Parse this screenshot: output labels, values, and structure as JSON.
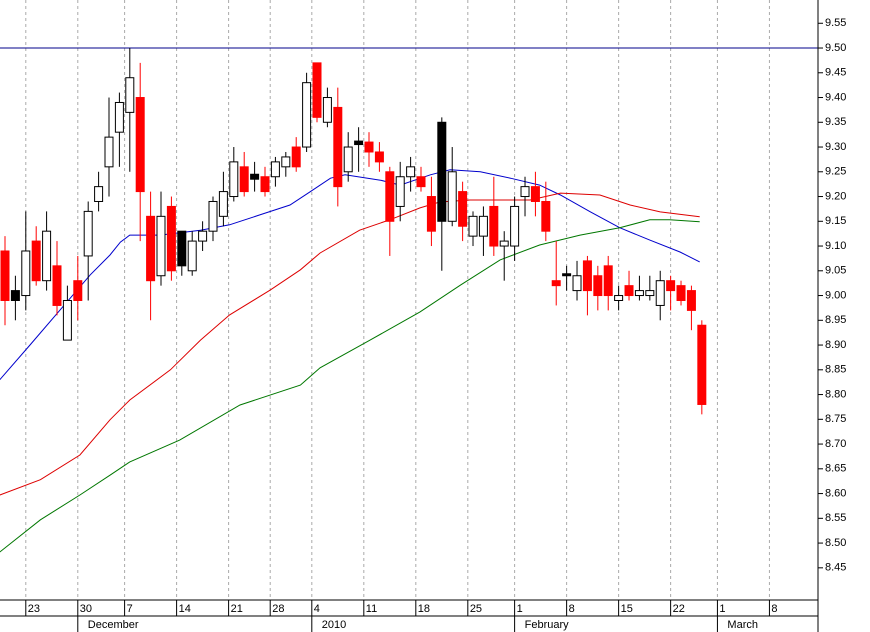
{
  "chart_data": {
    "type": "candlestick",
    "ylim": [
      8.385,
      9.597
    ],
    "yticks": [
      8.45,
      {
        "value": 8.5,
        "label": "8.50"
      },
      8.55,
      {
        "value": 8.6,
        "label": "8.60"
      },
      8.65,
      {
        "value": 8.7,
        "label": "8.70"
      },
      8.75,
      {
        "value": 8.8,
        "label": "8.80"
      },
      8.85,
      {
        "value": 8.9,
        "label": "8.90"
      },
      8.95,
      {
        "value": 9.0,
        "label": "9.00"
      },
      9.05,
      {
        "value": 9.1,
        "label": "9.10"
      },
      9.15,
      {
        "value": 9.2,
        "label": "9.20"
      },
      9.25,
      {
        "value": 9.3,
        "label": "9.30"
      },
      9.35,
      {
        "value": 9.4,
        "label": "9.40"
      },
      9.45,
      {
        "value": 9.5,
        "label": "9.50"
      },
      9.55
    ],
    "xlim": [
      -0.48,
      78.17
    ],
    "xticks": [
      {
        "value": 2,
        "label": "23"
      },
      {
        "value": 7,
        "label": "30"
      },
      {
        "value": 11.5,
        "label": "7"
      },
      {
        "value": 16.5,
        "label": "14"
      },
      {
        "value": 21.5,
        "label": "21"
      },
      {
        "value": 25.5,
        "label": "28"
      },
      {
        "value": 29.5,
        "label": "4"
      },
      {
        "value": 34.5,
        "label": "11"
      },
      {
        "value": 39.5,
        "label": "18"
      },
      {
        "value": 44.5,
        "label": "25"
      },
      {
        "value": 49,
        "label": "1"
      },
      {
        "value": 54,
        "label": "8"
      },
      {
        "value": 59,
        "label": "15"
      },
      {
        "value": 64,
        "label": "22"
      },
      {
        "value": 68.5,
        "label": "1"
      },
      {
        "value": 73.5,
        "label": "8"
      }
    ],
    "month_ticks": [
      {
        "value": 7,
        "label": "December"
      },
      {
        "value": 29.5,
        "label": "2010"
      },
      {
        "value": 49,
        "label": "February"
      },
      {
        "value": 68.5,
        "label": "March"
      }
    ],
    "grid": true,
    "reference_line": {
      "value": 9.5,
      "color": "#00008b"
    },
    "candles": {
      "x": [
        0,
        1,
        2,
        3,
        4,
        5,
        6,
        7,
        8,
        9,
        10,
        11,
        12,
        13,
        14,
        15,
        16,
        17,
        18,
        19,
        20,
        21,
        22,
        23,
        24,
        25,
        26,
        27,
        28,
        29,
        30,
        31,
        32,
        33,
        34,
        35,
        36,
        37,
        38,
        39,
        40,
        41,
        42,
        43,
        44,
        45,
        46,
        47,
        48,
        49,
        50,
        51,
        52,
        53,
        54,
        55,
        56,
        57,
        58,
        59,
        60,
        61,
        62,
        63,
        64,
        65,
        66,
        67
      ],
      "open": [
        9.09,
        9.01,
        9.0,
        9.11,
        9.03,
        9.06,
        8.91,
        9.03,
        9.08,
        9.19,
        9.26,
        9.33,
        9.37,
        9.4,
        9.16,
        9.04,
        9.18,
        9.13,
        9.05,
        9.11,
        9.13,
        9.16,
        9.2,
        9.26,
        9.245,
        9.24,
        9.24,
        9.26,
        9.3,
        9.3,
        9.47,
        9.35,
        9.38,
        9.25,
        9.312,
        9.31,
        9.29,
        9.25,
        9.18,
        9.24,
        9.24,
        9.2,
        9.35,
        9.15,
        9.21,
        9.12,
        9.12,
        9.18,
        9.1,
        9.1,
        9.2,
        9.22,
        9.19,
        9.03,
        9.044,
        9.01,
        9.07,
        9.04,
        9.06,
        8.99,
        9.02,
        9.0,
        9.0,
        8.98,
        9.03,
        9.02,
        9.01,
        8.94
      ],
      "high": [
        9.12,
        9.04,
        9.17,
        9.14,
        9.17,
        9.11,
        9.02,
        9.08,
        9.19,
        9.25,
        9.4,
        9.41,
        9.5,
        9.47,
        9.21,
        9.21,
        9.2,
        9.13,
        9.13,
        9.15,
        9.2,
        9.25,
        9.3,
        9.29,
        9.27,
        9.26,
        9.28,
        9.29,
        9.32,
        9.45,
        9.47,
        9.42,
        9.42,
        9.33,
        9.34,
        9.33,
        9.31,
        9.26,
        9.27,
        9.28,
        9.26,
        9.24,
        9.36,
        9.3,
        9.23,
        9.17,
        9.18,
        9.24,
        9.13,
        9.2,
        9.24,
        9.25,
        9.23,
        9.11,
        9.06,
        9.07,
        9.08,
        9.06,
        9.08,
        9.02,
        9.05,
        9.04,
        9.04,
        9.05,
        9.04,
        9.03,
        9.02,
        8.95
      ],
      "low": [
        8.94,
        8.95,
        8.97,
        9.02,
        9.01,
        8.96,
        8.91,
        8.95,
        8.99,
        9.17,
        9.2,
        9.26,
        9.25,
        9.11,
        8.95,
        9.02,
        9.03,
        9.04,
        9.04,
        9.09,
        9.11,
        9.14,
        9.19,
        9.2,
        9.21,
        9.2,
        9.22,
        9.24,
        9.25,
        9.29,
        9.35,
        9.34,
        9.18,
        9.23,
        9.25,
        9.26,
        9.25,
        9.08,
        9.15,
        9.21,
        9.21,
        9.1,
        9.05,
        9.14,
        9.11,
        9.1,
        9.08,
        9.08,
        9.03,
        9.07,
        9.16,
        9.16,
        9.11,
        8.98,
        9.01,
        8.99,
        8.96,
        8.97,
        8.97,
        8.97,
        8.99,
        8.99,
        8.99,
        8.95,
        8.97,
        8.98,
        8.93,
        8.76
      ],
      "close": [
        8.99,
        8.99,
        9.09,
        9.03,
        9.13,
        8.98,
        8.99,
        8.99,
        9.17,
        9.22,
        9.32,
        9.39,
        9.44,
        9.21,
        9.03,
        9.16,
        9.05,
        9.06,
        9.11,
        9.13,
        9.19,
        9.21,
        9.27,
        9.21,
        9.235,
        9.21,
        9.27,
        9.28,
        9.26,
        9.43,
        9.36,
        9.4,
        9.22,
        9.3,
        9.305,
        9.29,
        9.27,
        9.15,
        9.24,
        9.26,
        9.22,
        9.13,
        9.15,
        9.25,
        9.14,
        9.16,
        9.16,
        9.1,
        9.11,
        9.18,
        9.22,
        9.19,
        9.13,
        9.02,
        9.04,
        9.04,
        9.01,
        9.0,
        9.0,
        9.0,
        9.0,
        9.01,
        9.01,
        9.03,
        9.01,
        8.99,
        8.97,
        8.78
      ],
      "colors": [
        "#ff0000",
        "#000000",
        "#ffffff",
        "#ff0000",
        "#ffffff",
        "#ff0000",
        "#ffffff",
        "#ff0000",
        "#ffffff",
        "#ffffff",
        "#ffffff",
        "#ffffff",
        "#ffffff",
        "#ff0000",
        "#ff0000",
        "#ffffff",
        "#ff0000",
        "#000000",
        "#ffffff",
        "#ffffff",
        "#ffffff",
        "#ffffff",
        "#ffffff",
        "#ff0000",
        "#000000",
        "#ff0000",
        "#ffffff",
        "#ffffff",
        "#ff0000",
        "#ffffff",
        "#ff0000",
        "#ffffff",
        "#ff0000",
        "#ffffff",
        "#000000",
        "#ff0000",
        "#ff0000",
        "#ff0000",
        "#ffffff",
        "#ffffff",
        "#ff0000",
        "#ff0000",
        "#000000",
        "#ffffff",
        "#ff0000",
        "#ffffff",
        "#ffffff",
        "#ff0000",
        "#ffffff",
        "#ffffff",
        "#ffffff",
        "#ff0000",
        "#ff0000",
        "#ff0000",
        "#000000",
        "#ffffff",
        "#ff0000",
        "#ff0000",
        "#ff0000",
        "#ffffff",
        "#ff0000",
        "#ffffff",
        "#ffffff",
        "#ffffff",
        "#ff0000",
        "#ff0000",
        "#ff0000",
        "#ff0000"
      ]
    },
    "series": [
      {
        "color": "#0000cc",
        "x": [
          -0.5,
          2.4,
          5.3,
          8.2,
          10.1,
          11.1,
          12.0,
          14.9,
          18.8,
          21.6,
          24.5,
          27.4,
          29.3,
          31.3,
          32.7,
          36.1,
          38.0,
          40.9,
          42.8,
          45.7,
          48.6,
          51.4,
          53.4,
          56.3,
          59.1,
          62.0,
          64.9,
          66.8
        ],
        "values": [
          8.83,
          8.9,
          8.971,
          9.042,
          9.082,
          9.108,
          9.122,
          9.122,
          9.132,
          9.143,
          9.163,
          9.183,
          9.209,
          9.237,
          9.244,
          9.233,
          9.223,
          9.244,
          9.254,
          9.25,
          9.237,
          9.223,
          9.203,
          9.169,
          9.137,
          9.112,
          9.088,
          9.068
        ]
      },
      {
        "color": "#dd0000",
        "x": [
          -0.5,
          3.4,
          7.2,
          10.1,
          12.0,
          15.9,
          18.8,
          21.6,
          25.5,
          28.4,
          30.3,
          34.1,
          37.0,
          39.9,
          41.8,
          44.7,
          47.6,
          50.5,
          53.4,
          57.2,
          60.1,
          63.0,
          66.8
        ],
        "values": [
          8.597,
          8.628,
          8.678,
          8.749,
          8.789,
          8.85,
          8.91,
          8.961,
          9.011,
          9.052,
          9.086,
          9.132,
          9.153,
          9.177,
          9.189,
          9.193,
          9.193,
          9.193,
          9.207,
          9.203,
          9.183,
          9.169,
          9.159
        ]
      },
      {
        "color": "#007700",
        "x": [
          -0.5,
          3.4,
          7.2,
          10.1,
          12.0,
          16.8,
          22.6,
          28.4,
          30.3,
          35.1,
          39.9,
          43.8,
          47.6,
          51.4,
          55.3,
          59.1,
          62.0,
          63.9,
          66.8
        ],
        "values": [
          8.482,
          8.547,
          8.597,
          8.637,
          8.664,
          8.708,
          8.779,
          8.819,
          8.854,
          8.91,
          8.967,
          9.021,
          9.072,
          9.102,
          9.122,
          9.137,
          9.153,
          9.153,
          9.149
        ]
      }
    ]
  }
}
